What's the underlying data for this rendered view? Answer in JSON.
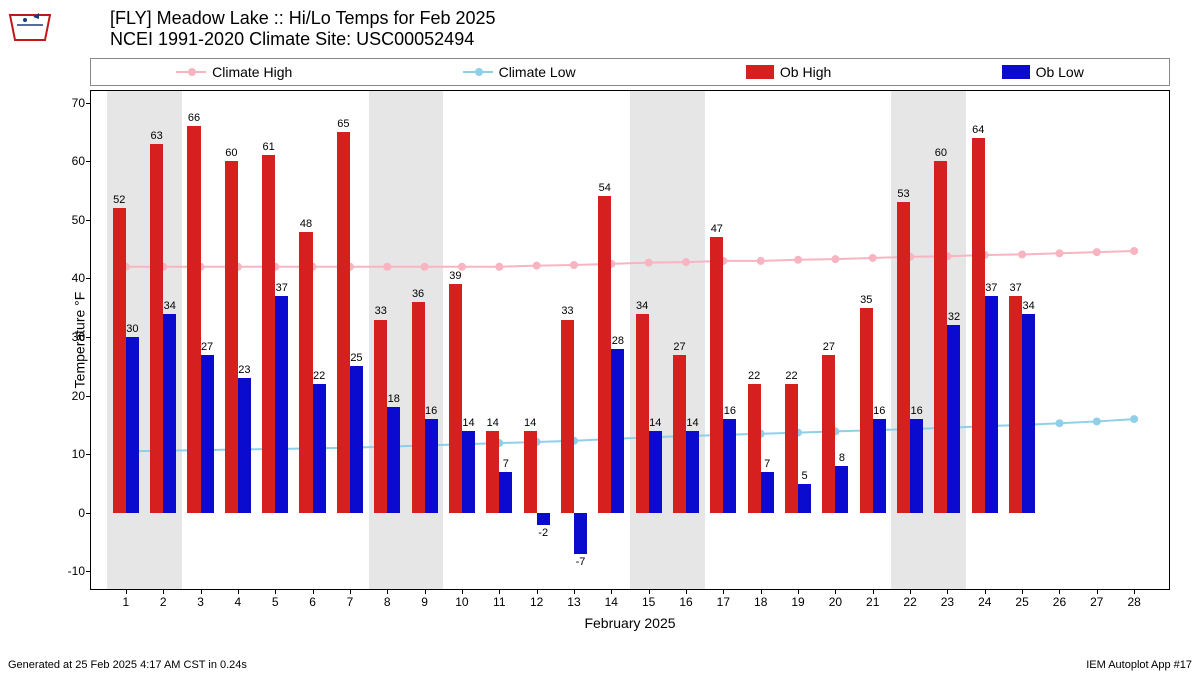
{
  "title": {
    "line1": "[FLY] Meadow Lake :: Hi/Lo Temps for Feb 2025",
    "line2": "NCEI 1991-2020 Climate Site: USC00052494"
  },
  "legend": {
    "climate_high": "Climate High",
    "climate_low": "Climate Low",
    "ob_high": "Ob High",
    "ob_low": "Ob Low"
  },
  "colors": {
    "climate_high": "#f8b4c0",
    "climate_low": "#8fd0e8",
    "ob_high": "#d61f1f",
    "ob_low": "#0b0bd0",
    "weekend_band": "#e6e6e6",
    "background": "#ffffff",
    "axis": "#000000"
  },
  "chart": {
    "type": "bar+line",
    "xlabel": "February 2025",
    "ylabel": "Temperature °F",
    "ylim": [
      -13,
      72
    ],
    "yticks": [
      -10,
      0,
      10,
      20,
      30,
      40,
      50,
      60,
      70
    ],
    "days": [
      1,
      2,
      3,
      4,
      5,
      6,
      7,
      8,
      9,
      10,
      11,
      12,
      13,
      14,
      15,
      16,
      17,
      18,
      19,
      20,
      21,
      22,
      23,
      24,
      25,
      26,
      27,
      28
    ],
    "ob_high": [
      52,
      63,
      66,
      60,
      61,
      48,
      65,
      33,
      36,
      39,
      14,
      14,
      33,
      54,
      34,
      27,
      47,
      22,
      22,
      27,
      35,
      53,
      60,
      64,
      37,
      null,
      null,
      null
    ],
    "ob_low": [
      30,
      34,
      27,
      23,
      37,
      22,
      25,
      18,
      16,
      14,
      7,
      -2,
      -7,
      28,
      14,
      14,
      16,
      7,
      5,
      8,
      16,
      16,
      32,
      37,
      34,
      null,
      null,
      null
    ],
    "ob_high_labels": [
      "52",
      "63",
      "66",
      "60",
      "61",
      "48",
      "65",
      "33",
      "36",
      "39",
      "14",
      "14",
      "33",
      "54",
      "34",
      "27",
      "47",
      "22",
      "22",
      "27",
      "35",
      "53",
      "60",
      "64",
      "37",
      null,
      null,
      null
    ],
    "ob_low_labels": [
      "30",
      "34",
      "27",
      "23",
      "37",
      "22",
      "25",
      "18",
      "16",
      "14",
      "7",
      "-2",
      "-7",
      "28",
      "14",
      "14",
      "16",
      "7",
      "5",
      "8",
      "16",
      "16",
      "32",
      "37",
      "34",
      null,
      null,
      null
    ],
    "climate_high": [
      42,
      42,
      42,
      42,
      42,
      42,
      42,
      42,
      42,
      42,
      42,
      42.2,
      42.3,
      42.5,
      42.7,
      42.8,
      43,
      43,
      43.2,
      43.3,
      43.5,
      43.7,
      43.8,
      44,
      44.1,
      44.3,
      44.5,
      44.7
    ],
    "climate_low": [
      10.5,
      10.6,
      10.7,
      10.8,
      10.9,
      11,
      11.1,
      11.3,
      11.5,
      11.7,
      11.9,
      12.1,
      12.3,
      12.6,
      12.9,
      13.1,
      13.3,
      13.5,
      13.7,
      13.9,
      14.1,
      14.3,
      14.5,
      14.8,
      15,
      15.3,
      15.6,
      16
    ],
    "weekend_bands": [
      [
        1,
        2
      ],
      [
        8,
        9
      ],
      [
        15,
        16
      ],
      [
        22,
        23
      ]
    ],
    "bar_width": 0.35,
    "marker_radius": 4,
    "line_width": 2,
    "label_fontsize": 11,
    "tick_fontsize": 12,
    "axis_label_fontsize": 14,
    "title_fontsize": 18
  },
  "footer": {
    "left": "Generated at 25 Feb 2025 4:17 AM CST in 0.24s",
    "right": "IEM Autoplot App #17"
  }
}
